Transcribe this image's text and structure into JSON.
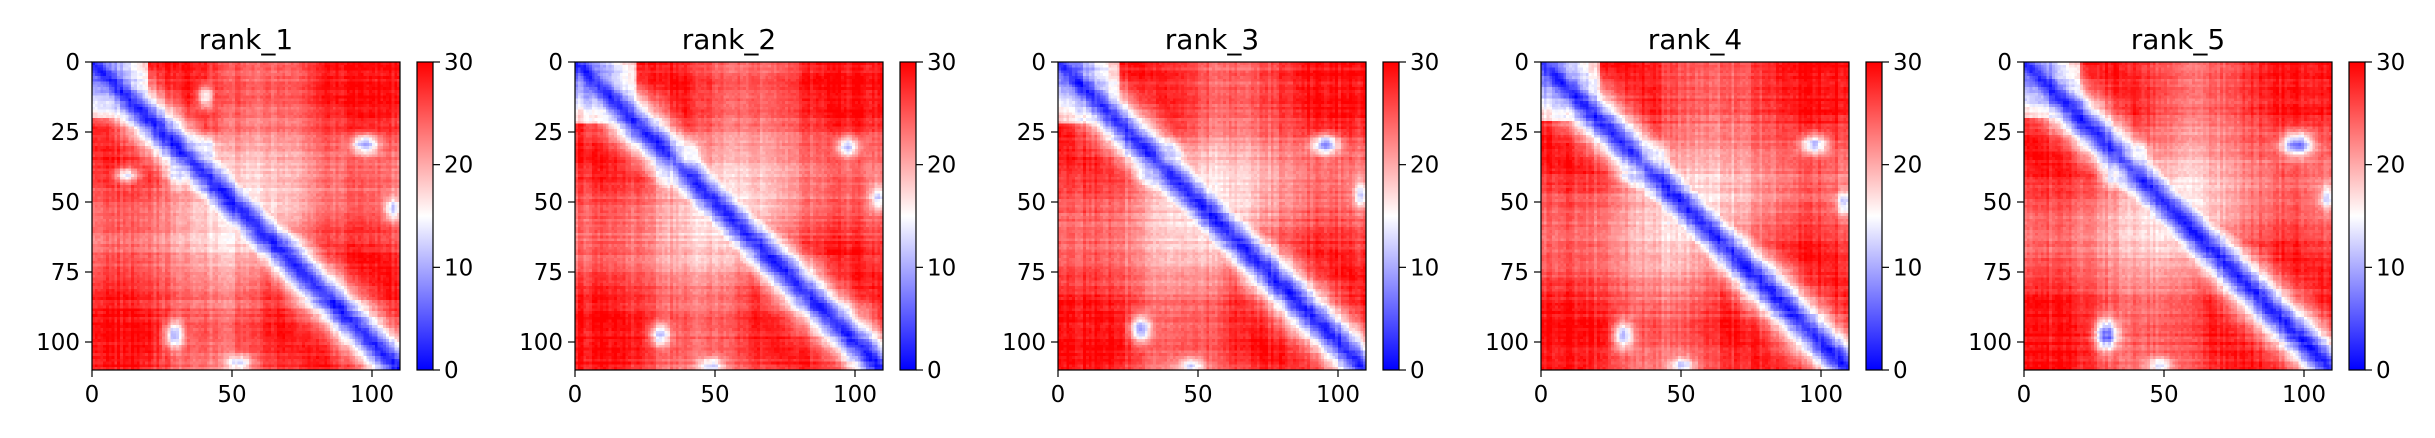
{
  "chart_data": [
    {
      "type": "heatmap",
      "title": "rank_1",
      "matrix_size": 110,
      "x_ticks": [
        0,
        50,
        100
      ],
      "y_ticks": [
        0,
        25,
        50,
        75,
        100
      ],
      "xlim": [
        0,
        110
      ],
      "ylim": [
        110,
        0
      ],
      "colorbar": {
        "min": 0,
        "max": 30,
        "ticks": [
          0,
          10,
          20,
          30
        ],
        "colormap": "bwr",
        "colors": [
          "#0000ff",
          "#ffffff",
          "#ff0000"
        ]
      },
      "features": {
        "low_block_end": 20,
        "diagonal_width": 5,
        "secondary_contacts": [
          {
            "x": 29,
            "y": 97,
            "value": 10,
            "sx": 2.5,
            "sy": 3.5
          },
          {
            "x": 97,
            "y": 29,
            "value": 10,
            "sx": 3.5,
            "sy": 2.5
          },
          {
            "x": 40,
            "y": 30,
            "value": 13,
            "sx": 3,
            "sy": 3
          },
          {
            "x": 30,
            "y": 40,
            "value": 13,
            "sx": 3,
            "sy": 3
          },
          {
            "x": 40,
            "y": 12,
            "value": 14,
            "sx": 2,
            "sy": 3
          },
          {
            "x": 12,
            "y": 40,
            "value": 14,
            "sx": 3,
            "sy": 2
          },
          {
            "x": 52,
            "y": 107,
            "value": 12,
            "sx": 3,
            "sy": 2
          },
          {
            "x": 107,
            "y": 52,
            "value": 12,
            "sx": 2,
            "sy": 3
          }
        ]
      }
    },
    {
      "type": "heatmap",
      "title": "rank_2",
      "matrix_size": 110,
      "x_ticks": [
        0,
        50,
        100
      ],
      "y_ticks": [
        0,
        25,
        50,
        75,
        100
      ],
      "xlim": [
        0,
        110
      ],
      "ylim": [
        110,
        0
      ],
      "colorbar": {
        "min": 0,
        "max": 30,
        "ticks": [
          0,
          10,
          20,
          30
        ],
        "colormap": "bwr",
        "colors": [
          "#0000ff",
          "#ffffff",
          "#ff0000"
        ]
      },
      "features": {
        "low_block_end": 22,
        "diagonal_width": 5,
        "secondary_contacts": [
          {
            "x": 30,
            "y": 97,
            "value": 12,
            "sx": 2.5,
            "sy": 3
          },
          {
            "x": 97,
            "y": 30,
            "value": 12,
            "sx": 3,
            "sy": 2.5
          },
          {
            "x": 40,
            "y": 32,
            "value": 14,
            "sx": 3,
            "sy": 3
          },
          {
            "x": 32,
            "y": 40,
            "value": 14,
            "sx": 3,
            "sy": 3
          },
          {
            "x": 48,
            "y": 108,
            "value": 12,
            "sx": 3,
            "sy": 2
          },
          {
            "x": 108,
            "y": 48,
            "value": 12,
            "sx": 2,
            "sy": 3
          }
        ]
      }
    },
    {
      "type": "heatmap",
      "title": "rank_3",
      "matrix_size": 110,
      "x_ticks": [
        0,
        50,
        100
      ],
      "y_ticks": [
        0,
        25,
        50,
        75,
        100
      ],
      "xlim": [
        0,
        110
      ],
      "ylim": [
        110,
        0
      ],
      "colorbar": {
        "min": 0,
        "max": 30,
        "ticks": [
          0,
          10,
          20,
          30
        ],
        "colormap": "bwr",
        "colors": [
          "#0000ff",
          "#ffffff",
          "#ff0000"
        ]
      },
      "features": {
        "low_block_end": 22,
        "diagonal_width": 5,
        "secondary_contacts": [
          {
            "x": 29,
            "y": 95,
            "value": 9,
            "sx": 2.5,
            "sy": 3.5
          },
          {
            "x": 95,
            "y": 29,
            "value": 9,
            "sx": 3.5,
            "sy": 2.5
          },
          {
            "x": 40,
            "y": 32,
            "value": 13,
            "sx": 3,
            "sy": 3
          },
          {
            "x": 32,
            "y": 40,
            "value": 13,
            "sx": 3,
            "sy": 3
          },
          {
            "x": 108,
            "y": 47,
            "value": 12,
            "sx": 2,
            "sy": 3
          },
          {
            "x": 47,
            "y": 108,
            "value": 12,
            "sx": 3,
            "sy": 2
          }
        ]
      }
    },
    {
      "type": "heatmap",
      "title": "rank_4",
      "matrix_size": 110,
      "x_ticks": [
        0,
        50,
        100
      ],
      "y_ticks": [
        0,
        25,
        50,
        75,
        100
      ],
      "xlim": [
        0,
        110
      ],
      "ylim": [
        110,
        0
      ],
      "colorbar": {
        "min": 0,
        "max": 30,
        "ticks": [
          0,
          10,
          20,
          30
        ],
        "colormap": "bwr",
        "colors": [
          "#0000ff",
          "#ffffff",
          "#ff0000"
        ]
      },
      "features": {
        "low_block_end": 21,
        "diagonal_width": 5,
        "secondary_contacts": [
          {
            "x": 29,
            "y": 97,
            "value": 10,
            "sx": 2.5,
            "sy": 3.5
          },
          {
            "x": 97,
            "y": 29,
            "value": 10,
            "sx": 3.5,
            "sy": 2.5
          },
          {
            "x": 40,
            "y": 32,
            "value": 13,
            "sx": 3,
            "sy": 3
          },
          {
            "x": 32,
            "y": 40,
            "value": 13,
            "sx": 3,
            "sy": 3
          },
          {
            "x": 50,
            "y": 108,
            "value": 12,
            "sx": 3,
            "sy": 2
          },
          {
            "x": 108,
            "y": 50,
            "value": 12,
            "sx": 2,
            "sy": 3
          }
        ]
      }
    },
    {
      "type": "heatmap",
      "title": "rank_5",
      "matrix_size": 110,
      "x_ticks": [
        0,
        50,
        100
      ],
      "y_ticks": [
        0,
        25,
        50,
        75,
        100
      ],
      "xlim": [
        0,
        110
      ],
      "ylim": [
        110,
        0
      ],
      "colorbar": {
        "min": 0,
        "max": 30,
        "ticks": [
          0,
          10,
          20,
          30
        ],
        "colormap": "bwr",
        "colors": [
          "#0000ff",
          "#ffffff",
          "#ff0000"
        ]
      },
      "features": {
        "low_block_end": 20,
        "diagonal_width": 5,
        "secondary_contacts": [
          {
            "x": 29,
            "y": 97,
            "value": 6,
            "sx": 3,
            "sy": 4
          },
          {
            "x": 97,
            "y": 29,
            "value": 6,
            "sx": 4,
            "sy": 3
          },
          {
            "x": 40,
            "y": 32,
            "value": 13,
            "sx": 3,
            "sy": 3
          },
          {
            "x": 32,
            "y": 40,
            "value": 13,
            "sx": 3,
            "sy": 3
          },
          {
            "x": 108,
            "y": 48,
            "value": 12,
            "sx": 2,
            "sy": 3
          },
          {
            "x": 48,
            "y": 108,
            "value": 12,
            "sx": 3,
            "sy": 2
          }
        ]
      }
    }
  ]
}
